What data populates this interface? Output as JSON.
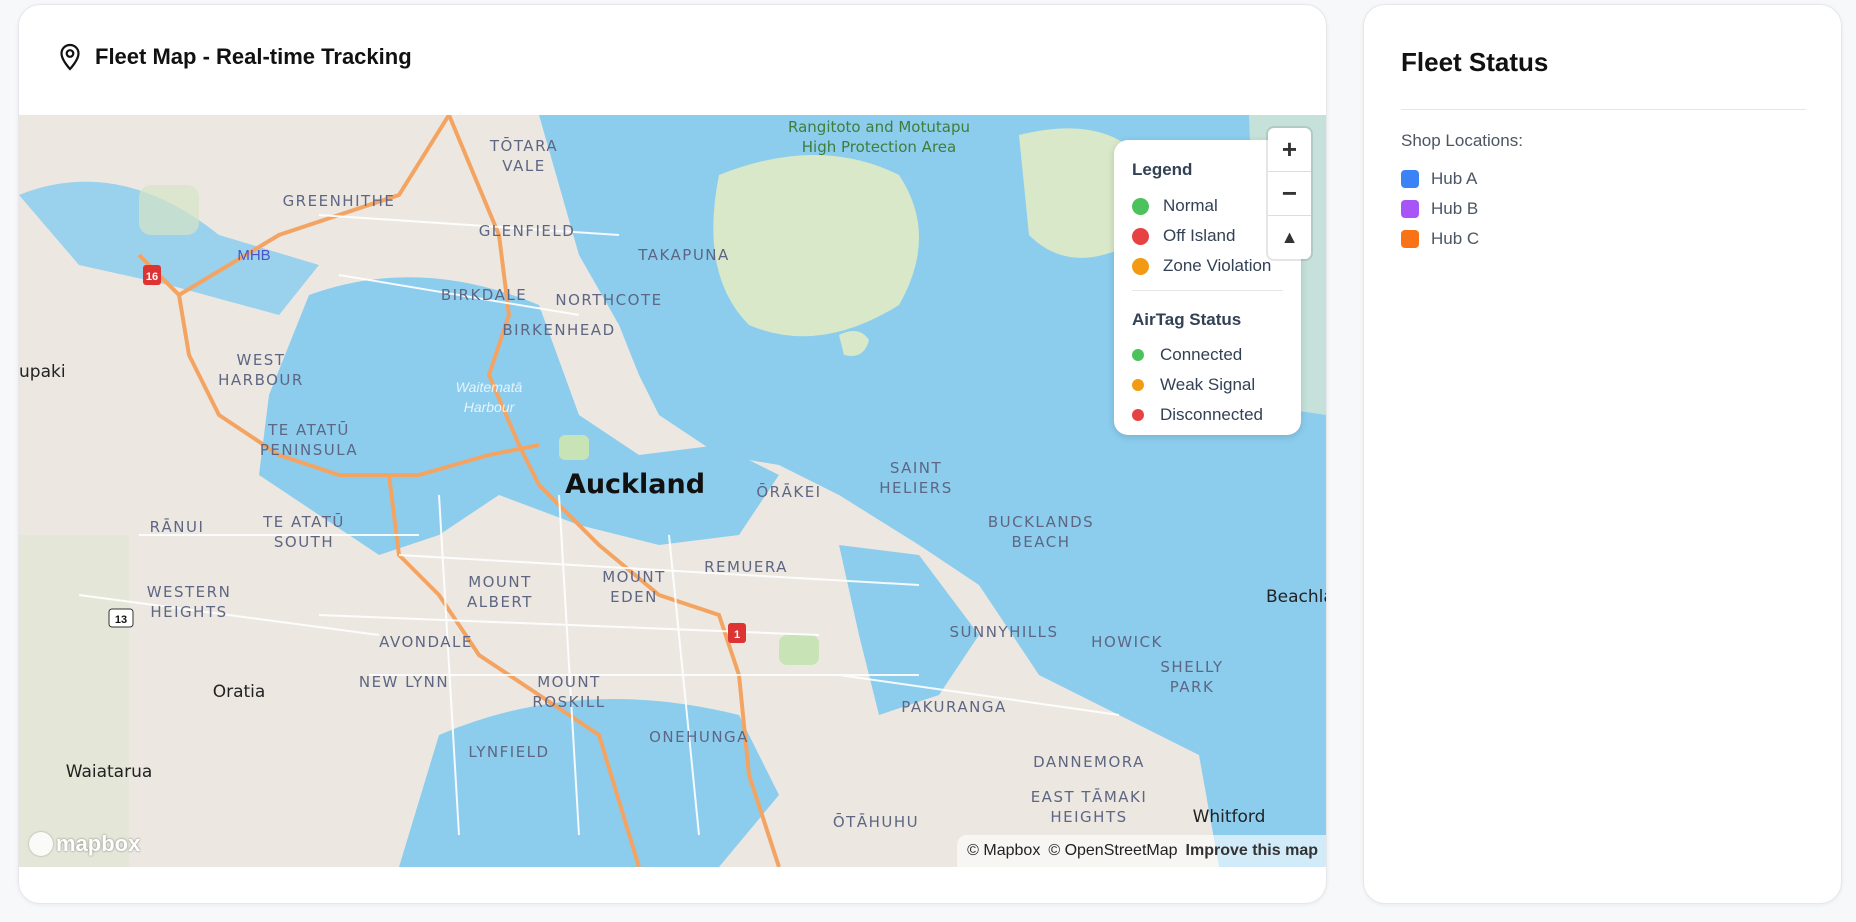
{
  "map_card": {
    "title": "Fleet Map - Real-time Tracking",
    "icon": "map-pin-icon",
    "legend": {
      "title": "Legend",
      "items": [
        {
          "label": "Normal",
          "color": "#4cc25c"
        },
        {
          "label": "Off Island",
          "color": "#e84142"
        },
        {
          "label": "Zone Violation",
          "color": "#f29b12"
        }
      ],
      "airtag_title": "AirTag Status",
      "airtag_items": [
        {
          "label": "Connected",
          "color": "#4cc25c"
        },
        {
          "label": "Weak Signal",
          "color": "#f29b12"
        },
        {
          "label": "Disconnected",
          "color": "#e84142"
        }
      ]
    },
    "zoom_controls": {
      "zoom_in": "+",
      "zoom_out": "−",
      "compass": "▲"
    },
    "attribution": {
      "mapbox": "© Mapbox",
      "osm": "© OpenStreetMap",
      "improve": "Improve this map"
    },
    "logo": "mapbox",
    "labels": {
      "auckland": "Auckland",
      "rangitoto": "Rangitoto and Motutapu",
      "rangitoto2": "High Protection Area",
      "totara": "TŌTARA",
      "vale": "VALE",
      "greenhithe": "GREENHITHE",
      "glenfield": "GLENFIELD",
      "takapuna": "TAKAPUNA",
      "birkdale": "BIRKDALE",
      "northcote": "NORTHCOTE",
      "birkenhead": "BIRKENHEAD",
      "mhb": "MHB",
      "west": "WEST",
      "harbour": "HARBOUR",
      "waitemata": "Waitematā",
      "harbour2": "Harbour",
      "teatatu": "TE ATATŪ",
      "peninsula": "PENINSULA",
      "ranui": "RĀNUI",
      "teatatu2": "TE ATATŪ",
      "south": "SOUTH",
      "western": "WESTERN",
      "heights": "HEIGHTS",
      "mount": "MOUNT",
      "albert": "ALBERT",
      "mount2": "MOUNT",
      "eden": "EDEN",
      "remuera": "REMUERA",
      "orakei": "ŌRĀKEI",
      "saint": "SAINT",
      "heliers": "HELIERS",
      "bucklands": "BUCKLANDS",
      "beach": "BEACH",
      "avondale": "AVONDALE",
      "newlynn": "NEW LYNN",
      "oratia": "Oratia",
      "mount3": "MOUNT",
      "roskill": "ROSKILL",
      "onehunga": "ONEHUNGA",
      "sunnyhills": "SUNNYHILLS",
      "howick": "HOWICK",
      "shelly": "SHELLY",
      "park": "PARK",
      "pakuranga": "PAKURANGA",
      "dannemora": "DANNEMORA",
      "easttamaki": "EAST TĀMAKI",
      "heights2": "HEIGHTS",
      "lynfield": "LYNFIELD",
      "waiatarua": "Waiatarua",
      "otahuhu": "ŌTĀHUHU",
      "whitford": "Whitford",
      "beachlands": "Beachla",
      "upaki": "upaki",
      "r16": "16",
      "r13": "13",
      "r1": "1"
    }
  },
  "status_card": {
    "title": "Fleet Status",
    "shop_locations_label": "Shop Locations:",
    "hubs": [
      {
        "label": "Hub A",
        "color": "#3b82f6"
      },
      {
        "label": "Hub B",
        "color": "#a855f7"
      },
      {
        "label": "Hub C",
        "color": "#f97316"
      }
    ]
  }
}
